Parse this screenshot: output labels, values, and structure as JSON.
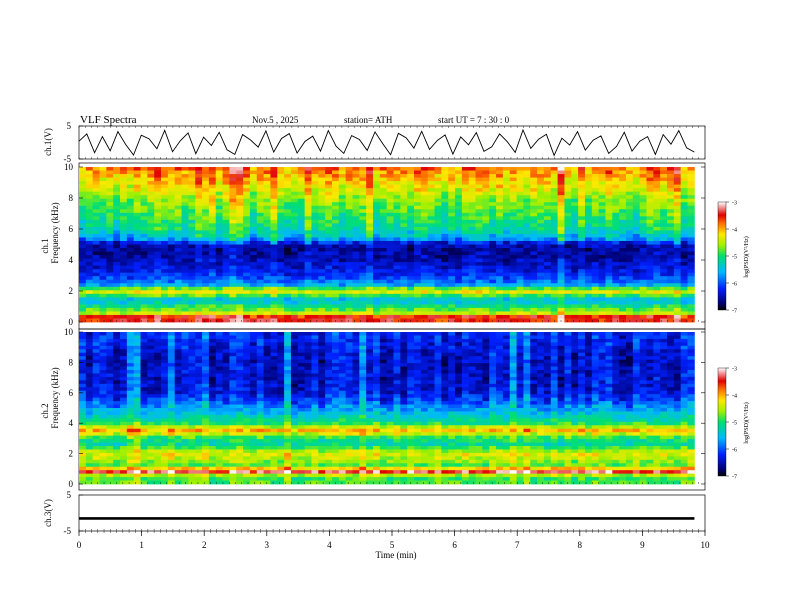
{
  "header": {
    "title": "VLF  Spectra",
    "date": "Nov.5  , 2025",
    "station": "station= ATH",
    "start_ut": "start  UT  =   7  : 30 : 0"
  },
  "chart_data": [
    {
      "type": "line",
      "panel": "ch1-waveform",
      "ylabel": "ch.1(V)",
      "ylim": [
        -5,
        5
      ],
      "yticks": [
        "5",
        "-5"
      ],
      "xlim": [
        0,
        10
      ],
      "series": [
        {
          "values": [
            0.4,
            2.6,
            -3.1,
            1.8,
            -2.5,
            3.3,
            -0.6,
            -3.8,
            2.2,
            1.1,
            -1.9,
            3.7,
            -2.8,
            0.5,
            2.9,
            -3.4,
            1.6,
            -0.9,
            3.1,
            -2.2,
            -3.6,
            2.4,
            0.8,
            -1.4,
            3.5,
            -2.9,
            1.2,
            2.7,
            -3.2,
            0.3,
            1.9,
            -2.6,
            3.6,
            -1.1,
            -3.3,
            2.1,
            0.9,
            -2.4,
            3.2,
            -0.4,
            -3.7,
            2.8,
            1.4,
            -1.7,
            3.4,
            -2.1,
            0.6,
            2.3,
            -3.5,
            1.7,
            -0.7,
            3.0,
            -2.7,
            -1.3,
            2.6,
            0.2,
            -3.0,
            3.8,
            -1.8,
            1.0,
            2.5,
            -3.9,
            1.3,
            -0.8,
            3.3,
            -2.3,
            0.7,
            2.0,
            -3.3,
            -1.2,
            3.1,
            -2.6,
            0.4,
            1.8,
            -3.6,
            2.4,
            -0.5,
            3.6,
            -1.6,
            -2.9
          ]
        }
      ]
    },
    {
      "type": "heatmap",
      "panel": "ch1-spectrogram",
      "ylabel": "ch.1\nFrequency  (kHz)",
      "ylim": [
        0,
        10
      ],
      "yticks": [
        "0",
        "2",
        "4",
        "6",
        "8",
        "10"
      ],
      "xlim": [
        0,
        10
      ],
      "colorbar": {
        "label": "log(PSD)(V²/Hz)",
        "range": [
          -7,
          -3
        ],
        "ticks": [
          "-3",
          "-4",
          "-5",
          "-6",
          "-7"
        ]
      },
      "freq_profile_khz": [
        {
          "f": 0.0,
          "v": -3.6
        },
        {
          "f": 0.3,
          "v": -3.4
        },
        {
          "f": 0.6,
          "v": -4.6
        },
        {
          "f": 1.0,
          "v": -5.0
        },
        {
          "f": 1.4,
          "v": -5.6
        },
        {
          "f": 2.0,
          "v": -4.2
        },
        {
          "f": 2.4,
          "v": -5.7
        },
        {
          "f": 3.0,
          "v": -6.2
        },
        {
          "f": 3.6,
          "v": -6.4
        },
        {
          "f": 4.0,
          "v": -6.5
        },
        {
          "f": 4.6,
          "v": -6.6
        },
        {
          "f": 5.0,
          "v": -6.5
        },
        {
          "f": 5.4,
          "v": -5.6
        },
        {
          "f": 6.0,
          "v": -5.2
        },
        {
          "f": 7.0,
          "v": -4.9
        },
        {
          "f": 8.0,
          "v": -4.6
        },
        {
          "f": 9.0,
          "v": -4.2
        },
        {
          "f": 10.0,
          "v": -3.8
        }
      ]
    },
    {
      "type": "heatmap",
      "panel": "ch2-spectrogram",
      "ylabel": "ch.2\nFrequency  (kHz)",
      "ylim": [
        0,
        10
      ],
      "yticks": [
        "0",
        "2",
        "4",
        "6",
        "8",
        "10"
      ],
      "xlim": [
        0,
        10
      ],
      "colorbar": {
        "label": "log(PSD)(V²/Hz)",
        "range": [
          -7,
          -3
        ],
        "ticks": [
          "-3",
          "-4",
          "-5",
          "-6",
          "-7"
        ]
      },
      "freq_profile_khz": [
        {
          "f": 0.0,
          "v": -4.8
        },
        {
          "f": 0.5,
          "v": -4.9
        },
        {
          "f": 0.8,
          "v": -3.3
        },
        {
          "f": 1.2,
          "v": -4.8
        },
        {
          "f": 2.0,
          "v": -4.3
        },
        {
          "f": 2.6,
          "v": -5.2
        },
        {
          "f": 3.0,
          "v": -5.0
        },
        {
          "f": 3.5,
          "v": -4.0
        },
        {
          "f": 4.0,
          "v": -5.0
        },
        {
          "f": 4.8,
          "v": -5.6
        },
        {
          "f": 5.4,
          "v": -6.0
        },
        {
          "f": 6.0,
          "v": -6.3
        },
        {
          "f": 7.0,
          "v": -6.4
        },
        {
          "f": 8.0,
          "v": -6.4
        },
        {
          "f": 9.0,
          "v": -6.3
        },
        {
          "f": 10.0,
          "v": -6.2
        }
      ]
    },
    {
      "type": "line",
      "panel": "ch3-voltage",
      "ylabel": "ch.3(V)",
      "ylim": [
        -5,
        5
      ],
      "yticks": [
        "5",
        "-5"
      ],
      "xlim": [
        0,
        10
      ],
      "series": [
        {
          "values": [
            -1.5,
            -1.5,
            -1.5,
            -1.5,
            -1.5,
            -1.5,
            -1.5,
            -1.5,
            -1.5,
            -1.5,
            -1.5
          ]
        }
      ]
    }
  ],
  "x_axis": {
    "label": "Time  (min)",
    "ticks": [
      "0",
      "1",
      "2",
      "3",
      "4",
      "5",
      "6",
      "7",
      "8",
      "9",
      "10"
    ]
  }
}
